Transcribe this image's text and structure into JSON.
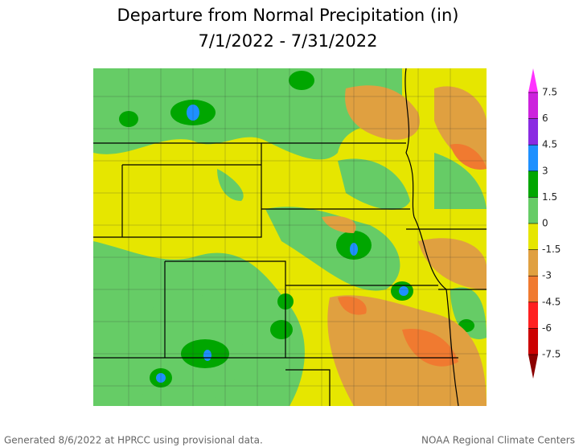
{
  "title": "Departure from Normal Precipitation (in)",
  "subtitle": "7/1/2022 - 7/31/2022",
  "legend": {
    "ticks": [
      7.5,
      6,
      4.5,
      3,
      1.5,
      0,
      -1.5,
      -3,
      -4.5,
      -6,
      -7.5
    ],
    "colors": [
      "#ff33ff",
      "#cc22dd",
      "#8a2be2",
      "#1e90ff",
      "#00a600",
      "#66cc66",
      "#e6e600",
      "#e0a040",
      "#f07a30",
      "#ff2020",
      "#cc0000",
      "#8b0000"
    ]
  },
  "footer": {
    "left": "Generated 8/6/2022 at HPRCC using provisional data.",
    "right": "NOAA Regional Climate Centers"
  }
}
